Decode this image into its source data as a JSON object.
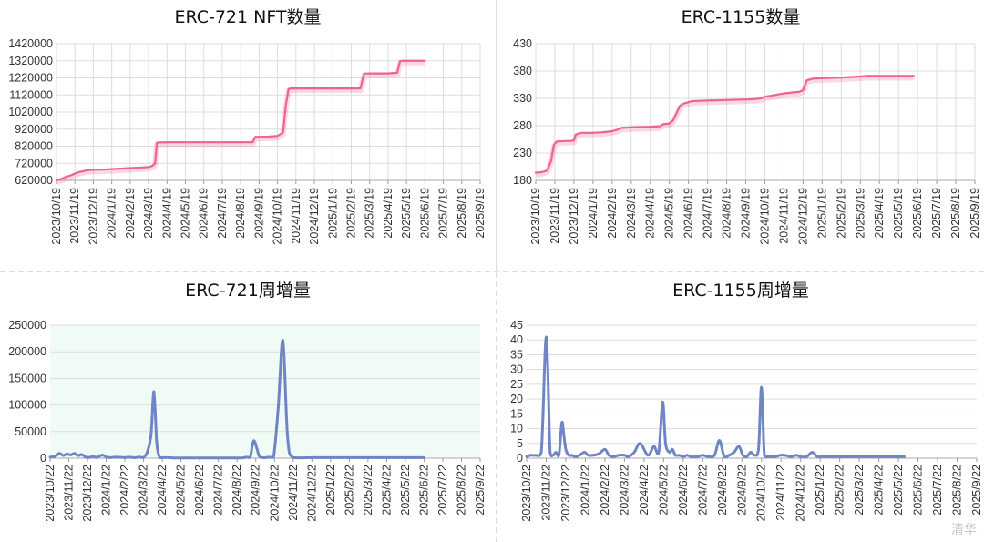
{
  "watermark": "清华",
  "charts": [
    {
      "title": "ERC-721 NFT数量",
      "type": "line",
      "ylim": [
        620000,
        1420000
      ],
      "yticks": [
        620000,
        720000,
        820000,
        920000,
        1020000,
        1120000,
        1220000,
        1320000,
        1420000
      ],
      "xticks": [
        "2023/10/19",
        "2023/11/19",
        "2023/12/19",
        "2024/1/19",
        "2024/2/19",
        "2024/3/19",
        "2024/4/19",
        "2024/5/19",
        "2024/6/19",
        "2024/7/19",
        "2024/8/19",
        "2024/9/19",
        "2024/10/19",
        "2024/11/19",
        "2024/12/19",
        "2025/1/19",
        "2025/2/19",
        "2025/3/19",
        "2025/4/19",
        "2025/5/19",
        "2025/6/19",
        "2025/7/19",
        "2025/8/19",
        "2025/9/19"
      ],
      "color": "#f06292",
      "bg": "#ffffff",
      "grid": "both",
      "series": [
        {
          "x": [
            0,
            0.3,
            0.5,
            0.8,
            1.0,
            1.2,
            1.5,
            1.7,
            2.0,
            2.5,
            3.0,
            3.5,
            4.0,
            4.5,
            5.0,
            5.2,
            5.35,
            5.45,
            5.6,
            6.0,
            7.0,
            8.0,
            9.0,
            10.0,
            10.5,
            10.65,
            10.8,
            11.0,
            11.5,
            12.0,
            12.3,
            12.45,
            12.6,
            12.7,
            13.0,
            14.0,
            15.0,
            16.0,
            16.5,
            16.7,
            17.0,
            18.0,
            18.5,
            18.65,
            18.8,
            19.0,
            19.5,
            20.0
          ],
          "y": [
            620000,
            630000,
            640000,
            650000,
            660000,
            668000,
            675000,
            680000,
            682000,
            683000,
            686000,
            689000,
            692000,
            695000,
            698000,
            705000,
            718000,
            840000,
            842000,
            843000,
            843000,
            843000,
            843000,
            843000,
            843000,
            843000,
            875000,
            875000,
            876000,
            880000,
            900000,
            1060000,
            1155000,
            1158000,
            1158000,
            1158000,
            1158000,
            1158000,
            1158000,
            1245000,
            1246000,
            1246000,
            1250000,
            1318000,
            1320000,
            1320000,
            1320000,
            1320000
          ]
        }
      ]
    },
    {
      "title": "ERC-1155数量",
      "type": "line",
      "ylim": [
        180,
        430
      ],
      "yticks": [
        180,
        230,
        280,
        330,
        380,
        430
      ],
      "xticks": [
        "2023/10/19",
        "2023/11/19",
        "2023/12/19",
        "2024/1/19",
        "2024/2/19",
        "2024/3/19",
        "2024/4/19",
        "2024/5/19",
        "2024/6/19",
        "2024/7/19",
        "2024/8/19",
        "2024/9/19",
        "2024/10/19",
        "2024/11/19",
        "2024/12/19",
        "2025/1/19",
        "2025/2/19",
        "2025/3/19",
        "2025/4/19",
        "2025/5/19",
        "2025/6/19",
        "2025/7/19",
        "2025/8/19",
        "2025/9/19"
      ],
      "color": "#f06292",
      "bg": "#ffffff",
      "grid": "both",
      "series": [
        {
          "x": [
            0,
            0.3,
            0.6,
            0.8,
            0.95,
            1.1,
            1.5,
            1.8,
            2.0,
            2.1,
            2.4,
            3.0,
            3.5,
            4.0,
            4.3,
            4.5,
            5.0,
            6.0,
            6.5,
            6.7,
            7.0,
            7.2,
            7.4,
            7.55,
            7.7,
            7.9,
            8.2,
            9.0,
            10.0,
            11.0,
            11.5,
            11.8,
            12.0,
            12.5,
            13.0,
            13.5,
            13.8,
            14.0,
            14.2,
            14.5,
            15.0,
            16.0,
            16.5,
            17.0,
            17.4,
            18.0,
            19.0,
            19.8
          ],
          "y": [
            194,
            195,
            198,
            215,
            245,
            251,
            252,
            252,
            253,
            264,
            267,
            267,
            268,
            270,
            273,
            276,
            277,
            278,
            279,
            283,
            284,
            290,
            305,
            316,
            320,
            322,
            325,
            326,
            327,
            328,
            329,
            330,
            333,
            336,
            339,
            341,
            342,
            345,
            363,
            366,
            367,
            368,
            369,
            370,
            371,
            371,
            371,
            371
          ]
        }
      ]
    },
    {
      "title": "ERC-721周增量",
      "type": "line",
      "ylim": [
        0,
        250000
      ],
      "yticks": [
        0,
        50000,
        100000,
        150000,
        200000,
        250000
      ],
      "xticks": [
        "2023/10/22",
        "2023/11/22",
        "2023/12/22",
        "2024/1/22",
        "2024/2/22",
        "2024/3/22",
        "2024/4/22",
        "2024/5/22",
        "2024/6/22",
        "2024/7/22",
        "2024/8/22",
        "2024/9/22",
        "2024/10/22",
        "2024/11/22",
        "2024/12/22",
        "2025/1/22",
        "2025/2/22",
        "2025/3/22",
        "2025/4/22",
        "2025/5/22",
        "2025/6/22",
        "2025/7/22",
        "2025/8/22",
        "2025/9/22"
      ],
      "color": "#6f85c4",
      "bg": "#f1fbf6",
      "grid": "horizontal",
      "series": [
        {
          "x": [
            0,
            0.25,
            0.5,
            0.7,
            0.9,
            1.1,
            1.3,
            1.5,
            1.7,
            1.9,
            2.1,
            2.3,
            2.5,
            2.8,
            3.0,
            3.2,
            3.5,
            3.8,
            4.0,
            4.2,
            4.5,
            4.8,
            5.0,
            5.2,
            5.4,
            5.55,
            5.7,
            5.85,
            6.0,
            6.3,
            6.6,
            7.0,
            8.0,
            9.0,
            10.0,
            10.3,
            10.5,
            10.7,
            10.9,
            11.2,
            11.5,
            11.7,
            11.95,
            12.2,
            12.45,
            12.7,
            13.0,
            14.0,
            15.0,
            16.0,
            16.2,
            16.4,
            16.55,
            16.7,
            16.9,
            17.2,
            17.5,
            17.7,
            17.9,
            18.05,
            18.2,
            18.4,
            18.7,
            19.0,
            19.5,
            20.0
          ],
          "y": [
            2000,
            3000,
            9000,
            5000,
            8000,
            6000,
            9000,
            5000,
            7000,
            2000,
            1500,
            3000,
            1500,
            6000,
            2000,
            1000,
            2000,
            1500,
            1000,
            2000,
            1000,
            2000,
            1500,
            12000,
            45000,
            125000,
            30000,
            1500,
            1000,
            1000,
            500,
            500,
            500,
            500,
            500,
            500,
            2000,
            2000,
            33000,
            3000,
            1000,
            2000,
            2000,
            95000,
            221000,
            40000,
            1000,
            1000,
            1000,
            1000,
            1000,
            1000,
            1000,
            1000,
            1000,
            1000,
            1000,
            1000,
            1000,
            1000,
            1000,
            1000,
            1000,
            1000,
            1000,
            1000
          ]
        }
      ]
    },
    {
      "title": "ERC-1155周增量",
      "type": "line",
      "ylim": [
        0,
        45
      ],
      "yticks": [
        0,
        5,
        10,
        15,
        20,
        25,
        30,
        35,
        40,
        45
      ],
      "xticks": [
        "2023/10/22",
        "2023/11/22",
        "2023/12/22",
        "2024/1/22",
        "2024/2/22",
        "2024/3/22",
        "2024/4/22",
        "2024/5/22",
        "2024/6/22",
        "2024/7/22",
        "2024/8/22",
        "2024/9/22",
        "2024/10/22",
        "2024/11/22",
        "2024/12/22",
        "2025/1/22",
        "2025/2/22",
        "2025/3/22",
        "2025/4/22",
        "2025/5/22",
        "2025/6/22",
        "2025/7/22",
        "2025/8/22",
        "2025/9/22"
      ],
      "color": "#6f85c4",
      "bg": "#ffffff",
      "grid": "horizontal",
      "series": [
        {
          "x": [
            0,
            0.2,
            0.45,
            0.75,
            1.0,
            1.2,
            1.35,
            1.5,
            1.65,
            1.8,
            1.9,
            2.0,
            2.15,
            2.3,
            2.5,
            2.7,
            2.95,
            3.15,
            3.4,
            3.7,
            4.0,
            4.2,
            4.45,
            4.7,
            5.0,
            5.2,
            5.5,
            5.8,
            6.2,
            6.5,
            6.75,
            6.95,
            7.1,
            7.3,
            7.45,
            7.6,
            7.8,
            8.0,
            8.2,
            8.4,
            8.7,
            9.0,
            9.3,
            9.6,
            9.85,
            10.1,
            10.35,
            10.6,
            10.85,
            11.05,
            11.25,
            11.45,
            11.65,
            11.85,
            12.0,
            12.15,
            12.35,
            12.5,
            12.7,
            12.95,
            13.2,
            13.5,
            13.8,
            14.0,
            14.3,
            14.6,
            14.85,
            15.0,
            15.15,
            15.35,
            15.55,
            15.75,
            16.0,
            16.3,
            16.55,
            16.75,
            17.0,
            17.5,
            18.0,
            18.5,
            19.0,
            19.3
          ],
          "y": [
            0.5,
            1,
            1,
            2,
            41,
            2,
            1,
            2,
            1,
            12,
            8,
            3,
            1,
            1,
            0.5,
            1,
            2,
            1,
            1,
            1.5,
            3,
            1,
            0.5,
            1,
            1,
            0.5,
            2,
            5,
            1,
            4,
            2,
            19,
            5,
            2,
            3,
            1,
            1,
            0.5,
            1,
            0.5,
            0.5,
            1,
            0.5,
            1,
            6,
            0.5,
            1,
            2,
            4,
            1,
            0.5,
            2,
            1,
            3,
            24,
            1,
            0.5,
            0.5,
            0.5,
            1,
            1,
            0.5,
            1,
            0.5,
            0.5,
            2,
            0.5,
            0.5,
            0.5,
            0.5,
            0.5,
            0.5,
            0.5,
            0.5,
            0.5,
            0.5,
            0.5,
            0.5,
            0.5,
            0.5,
            0.5,
            0.5
          ]
        }
      ]
    }
  ]
}
